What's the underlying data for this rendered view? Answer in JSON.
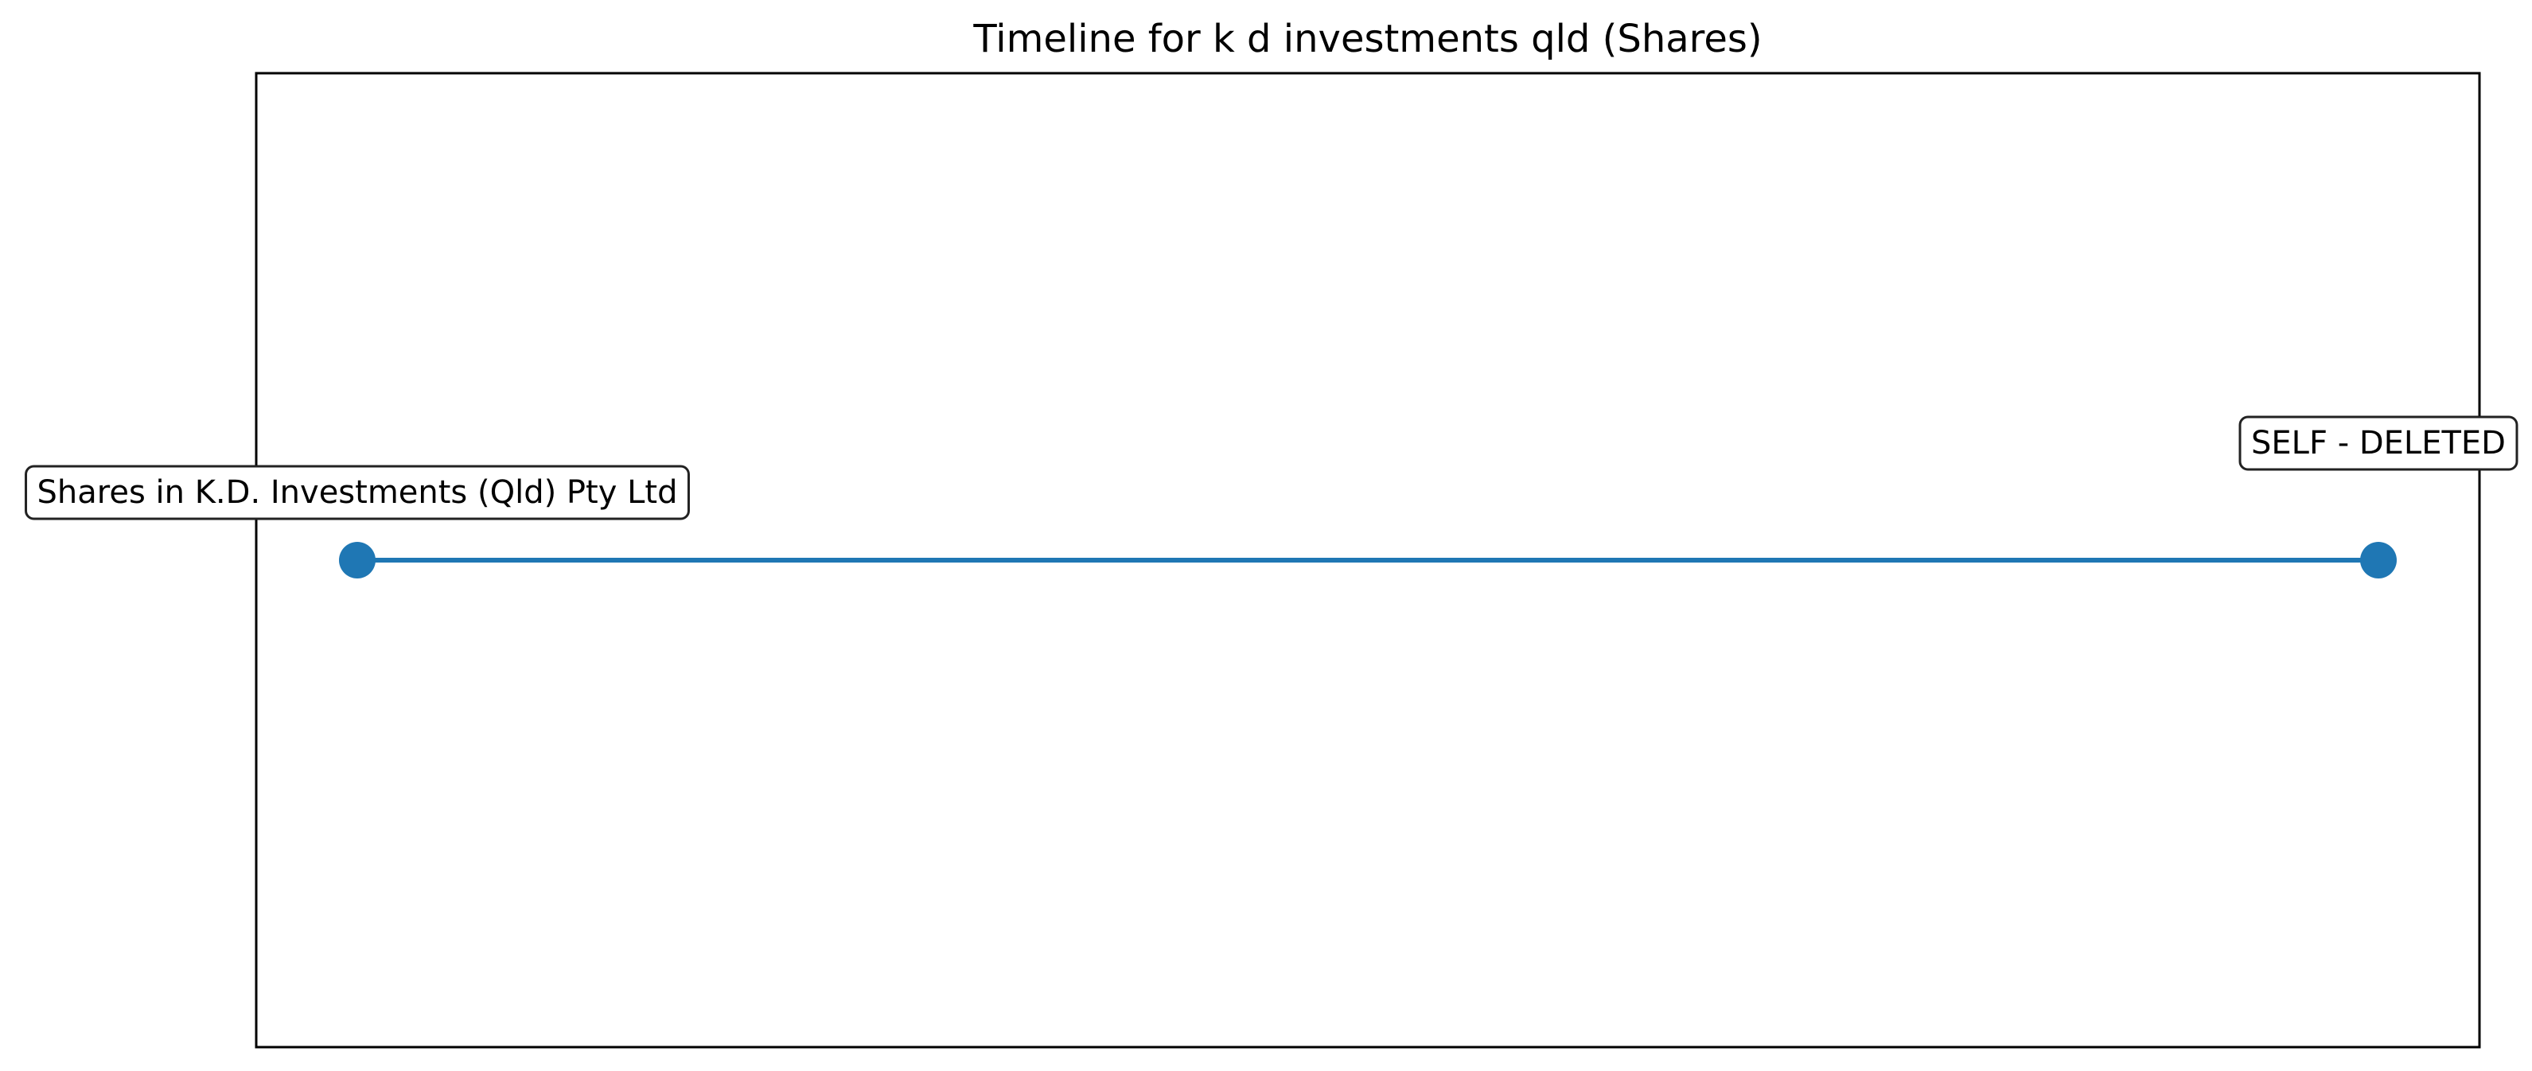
{
  "chart_data": {
    "type": "line",
    "title": "Timeline for k d investments qld (Shares)",
    "xlabel": "",
    "ylabel": "",
    "grid": false,
    "legend": "none",
    "xlim": [
      -0.05,
      1.05
    ],
    "ylim": [
      -1,
      1
    ],
    "series": [
      {
        "points": [
          {
            "x": 0,
            "y": 0,
            "label": "Shares in K.D. Investments (Qld) Pty Ltd"
          },
          {
            "x": 1,
            "y": 0,
            "label": "SELF - DELETED"
          }
        ]
      }
    ],
    "colors": {
      "line": "#1f77b4",
      "marker": "#1f77b4",
      "axes": "#000000",
      "label_box_edge": "#222222",
      "label_box_fill": "#ffffff"
    }
  }
}
